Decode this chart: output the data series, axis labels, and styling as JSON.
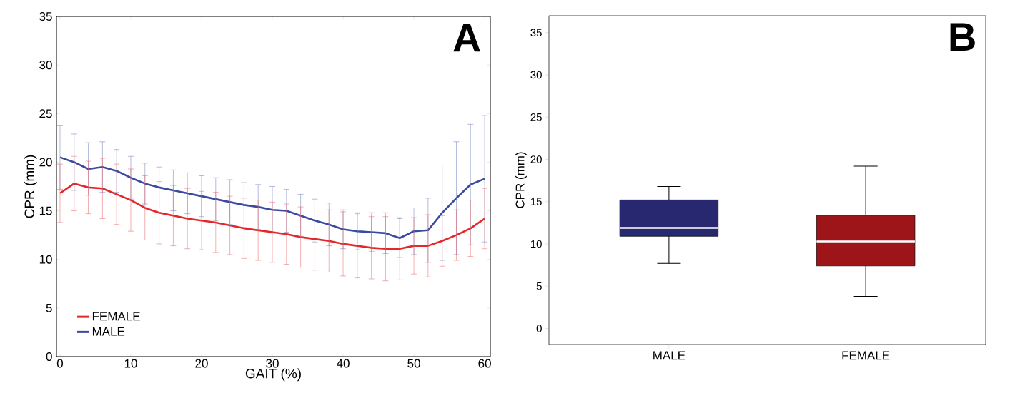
{
  "chart_data": [
    {
      "type": "line",
      "xlabel": "GAIT (%)",
      "ylabel": "CPR (mm)",
      "annotations": [
        "A"
      ],
      "x": [
        0,
        2,
        4,
        6,
        8,
        10,
        12,
        14,
        16,
        18,
        20,
        22,
        24,
        26,
        28,
        30,
        32,
        34,
        36,
        38,
        40,
        42,
        44,
        46,
        48,
        50,
        52,
        54,
        56,
        58,
        60
      ],
      "series": [
        {
          "name": "FEMALE",
          "color": "#e3282c",
          "values": [
            16.8,
            17.8,
            17.4,
            17.3,
            16.7,
            16.1,
            15.3,
            14.8,
            14.5,
            14.2,
            14.0,
            13.8,
            13.5,
            13.2,
            13.0,
            12.8,
            12.6,
            12.3,
            12.1,
            11.9,
            11.6,
            11.4,
            11.2,
            11.1,
            11.1,
            11.4,
            11.4,
            11.9,
            12.5,
            13.2,
            14.2
          ],
          "errors": [
            3.0,
            2.8,
            2.7,
            3.1,
            3.1,
            3.2,
            3.3,
            3.2,
            3.1,
            3.1,
            3.0,
            3.1,
            3.0,
            3.1,
            3.1,
            3.1,
            3.1,
            3.1,
            3.2,
            3.2,
            3.3,
            3.3,
            3.2,
            3.3,
            3.2,
            2.9,
            3.2,
            2.6,
            2.6,
            2.9,
            3.1
          ]
        },
        {
          "name": "MALE",
          "color": "#3a4a9e",
          "values": [
            20.5,
            20.0,
            19.3,
            19.5,
            19.1,
            18.4,
            17.8,
            17.4,
            17.1,
            16.8,
            16.5,
            16.2,
            15.9,
            15.6,
            15.4,
            15.1,
            15.0,
            14.5,
            14.0,
            13.6,
            13.1,
            12.9,
            12.8,
            12.7,
            12.2,
            12.9,
            13.0,
            14.8,
            16.3,
            17.7,
            18.3
          ],
          "errors": [
            3.3,
            2.9,
            2.7,
            2.6,
            2.2,
            2.2,
            2.1,
            2.1,
            2.1,
            2.1,
            2.1,
            2.2,
            2.3,
            2.3,
            2.3,
            2.4,
            2.2,
            2.2,
            2.2,
            2.2,
            2.0,
            1.9,
            2.0,
            2.1,
            2.0,
            2.4,
            3.3,
            4.9,
            5.8,
            6.2,
            6.5
          ]
        }
      ],
      "xlim": [
        -0.5,
        60.8
      ],
      "ylim": [
        0,
        35
      ],
      "xticks": [
        0,
        10,
        20,
        30,
        40,
        50,
        60
      ],
      "yticks": [
        0,
        5,
        10,
        15,
        20,
        25,
        30,
        35
      ],
      "legend": "bottom left",
      "marker": "none",
      "line_style": "solid",
      "grid": false
    },
    {
      "type": "box",
      "ylabel": "CPR (mm)",
      "annotations": [
        "B"
      ],
      "categories": [
        "MALE",
        "FEMALE"
      ],
      "boxes": [
        {
          "low": 7.7,
          "q1": 10.9,
          "median": 11.9,
          "q3": 15.2,
          "high": 16.8
        },
        {
          "low": 3.8,
          "q1": 7.4,
          "median": 10.3,
          "q3": 13.4,
          "high": 19.2
        }
      ],
      "colors": [
        "#27286f",
        "#9e1519"
      ],
      "ylim": [
        -1.9,
        37.0
      ],
      "yticks": [
        0,
        5,
        10,
        15,
        20,
        25,
        30,
        35
      ],
      "grid": false
    }
  ]
}
